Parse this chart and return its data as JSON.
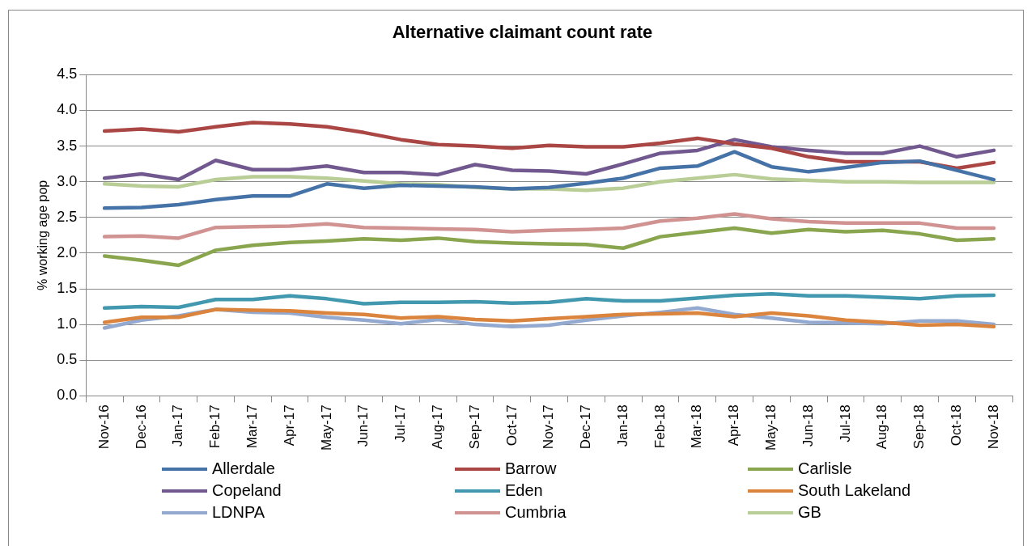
{
  "chart_data": {
    "type": "line",
    "title": "Alternative claimant count rate",
    "ylabel": "% working age pop",
    "categories": [
      "Nov-16",
      "Dec-16",
      "Jan-17",
      "Feb-17",
      "Mar-17",
      "Apr-17",
      "May-17",
      "Jun-17",
      "Jul-17",
      "Aug-17",
      "Sep-17",
      "Oct-17",
      "Nov-17",
      "Dec-17",
      "Jan-18",
      "Feb-18",
      "Mar-18",
      "Apr-18",
      "May-18",
      "Jun-18",
      "Jul-18",
      "Aug-18",
      "Sep-18",
      "Oct-18",
      "Nov-18"
    ],
    "series": [
      {
        "name": "Allerdale",
        "color": "#4572a7",
        "values": [
          2.63,
          2.64,
          2.68,
          2.75,
          2.8,
          2.8,
          2.97,
          2.91,
          2.95,
          2.94,
          2.93,
          2.9,
          2.92,
          2.98,
          3.05,
          3.19,
          3.22,
          3.42,
          3.21,
          3.14,
          3.2,
          3.27,
          3.29,
          3.16,
          3.03
        ]
      },
      {
        "name": "Barrow",
        "color": "#aa4643",
        "values": [
          3.71,
          3.74,
          3.7,
          3.77,
          3.83,
          3.81,
          3.77,
          3.69,
          3.59,
          3.52,
          3.5,
          3.47,
          3.51,
          3.49,
          3.49,
          3.54,
          3.61,
          3.53,
          3.47,
          3.35,
          3.28,
          3.28,
          3.28,
          3.19,
          3.27
        ]
      },
      {
        "name": "Carlisle",
        "color": "#89a54e",
        "values": [
          1.96,
          1.9,
          1.83,
          2.04,
          2.11,
          2.15,
          2.17,
          2.2,
          2.18,
          2.21,
          2.16,
          2.14,
          2.13,
          2.12,
          2.07,
          2.23,
          2.29,
          2.35,
          2.28,
          2.33,
          2.3,
          2.32,
          2.27,
          2.18,
          2.2
        ]
      },
      {
        "name": "Copeland",
        "color": "#71588f",
        "values": [
          3.05,
          3.11,
          3.03,
          3.3,
          3.17,
          3.17,
          3.22,
          3.13,
          3.13,
          3.1,
          3.24,
          3.16,
          3.15,
          3.11,
          3.25,
          3.4,
          3.44,
          3.59,
          3.49,
          3.44,
          3.4,
          3.4,
          3.5,
          3.35,
          3.44
        ]
      },
      {
        "name": "Eden",
        "color": "#4198af",
        "values": [
          1.23,
          1.25,
          1.24,
          1.35,
          1.35,
          1.4,
          1.36,
          1.29,
          1.31,
          1.31,
          1.32,
          1.3,
          1.31,
          1.36,
          1.33,
          1.33,
          1.37,
          1.41,
          1.43,
          1.4,
          1.4,
          1.38,
          1.36,
          1.4,
          1.41
        ]
      },
      {
        "name": "South Lakeland",
        "color": "#db843d",
        "values": [
          1.03,
          1.1,
          1.1,
          1.21,
          1.2,
          1.19,
          1.16,
          1.14,
          1.09,
          1.11,
          1.07,
          1.05,
          1.08,
          1.11,
          1.14,
          1.15,
          1.16,
          1.11,
          1.16,
          1.12,
          1.06,
          1.03,
          0.99,
          1.0,
          0.97
        ]
      },
      {
        "name": "LDNPA",
        "color": "#93a9cf",
        "values": [
          0.95,
          1.06,
          1.12,
          1.21,
          1.17,
          1.16,
          1.1,
          1.06,
          1.01,
          1.07,
          1.0,
          0.97,
          0.99,
          1.06,
          1.12,
          1.17,
          1.23,
          1.14,
          1.09,
          1.03,
          1.02,
          1.01,
          1.05,
          1.05,
          1.0
        ]
      },
      {
        "name": "Cumbria",
        "color": "#d19392",
        "values": [
          2.23,
          2.24,
          2.21,
          2.36,
          2.37,
          2.38,
          2.41,
          2.36,
          2.35,
          2.34,
          2.33,
          2.3,
          2.32,
          2.33,
          2.35,
          2.45,
          2.49,
          2.55,
          2.48,
          2.44,
          2.42,
          2.42,
          2.42,
          2.35,
          2.35
        ]
      },
      {
        "name": "GB",
        "color": "#b9cd96",
        "values": [
          2.97,
          2.94,
          2.93,
          3.03,
          3.07,
          3.07,
          3.05,
          3.01,
          2.97,
          2.96,
          2.92,
          2.9,
          2.9,
          2.88,
          2.91,
          3.0,
          3.05,
          3.1,
          3.04,
          3.02,
          3.0,
          3.0,
          2.99,
          2.99,
          2.99
        ]
      }
    ],
    "ylim": [
      0,
      4.5
    ],
    "yticks": [
      {
        "value": 0,
        "label": "0.0"
      },
      {
        "value": 0.5,
        "label": "0.5"
      },
      {
        "value": 1,
        "label": "1.0"
      },
      {
        "value": 1.5,
        "label": "1.5"
      },
      {
        "value": 2,
        "label": "2.0"
      },
      {
        "value": 2.5,
        "label": "2.5"
      },
      {
        "value": 3,
        "label": "3.0"
      },
      {
        "value": 3.5,
        "label": "3.5"
      },
      {
        "value": 4,
        "label": "4.0"
      },
      {
        "value": 4.5,
        "label": "4.5"
      }
    ],
    "grid": "y",
    "legend": "bottom",
    "marker": "none",
    "line_style": "solid"
  }
}
